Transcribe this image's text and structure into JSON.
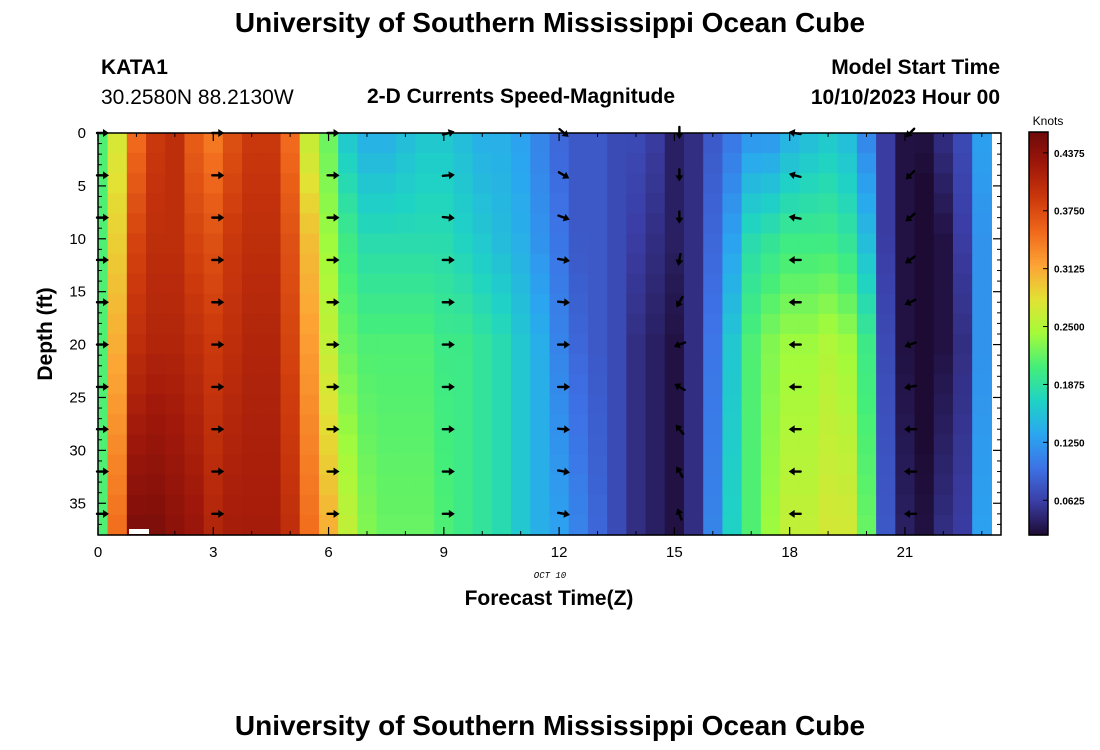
{
  "header": {
    "title": "University of Southern Mississippi Ocean Cube",
    "station": "KATA1",
    "coords": "30.2580N  88.2130W",
    "subtitle": "2-D Currents Speed-Magnitude",
    "start_label": "Model Start Time",
    "start_value": "10/10/2023 Hour 00",
    "footer_title": "University of Southern Mississippi Ocean Cube"
  },
  "chart_data": {
    "type": "heatmap",
    "title": "2-D Currents Speed-Magnitude",
    "xlabel": "Forecast Time(Z)",
    "ylabel": "Depth (ft)",
    "date_label": "OCT 10",
    "xlim": [
      0,
      23.5
    ],
    "ylim": [
      0,
      38
    ],
    "y_inverted": true,
    "x_ticks": [
      0,
      3,
      6,
      9,
      12,
      15,
      18,
      21
    ],
    "y_ticks": [
      0,
      5,
      10,
      15,
      20,
      25,
      30,
      35
    ],
    "colorbar": {
      "label": "Knots",
      "min": 0.025,
      "max": 0.46,
      "ticks": [
        "0.0625",
        "0.1250",
        "0.1875",
        "0.2500",
        "0.3125",
        "0.3750",
        "0.4375"
      ],
      "colors": [
        "#1d0b33",
        "#3b3ea6",
        "#3d72e6",
        "#2aa7f0",
        "#1fd3c4",
        "#44ee7a",
        "#a4fb3a",
        "#e2e234",
        "#fca535",
        "#f16a1c",
        "#cd3a0c",
        "#a0180a",
        "#6e0a0a"
      ]
    },
    "times": [
      0,
      0.5,
      1,
      1.5,
      2,
      2.5,
      3,
      3.5,
      4,
      4.5,
      5,
      5.5,
      6,
      6.5,
      7,
      7.5,
      8,
      8.5,
      9,
      9.5,
      10,
      10.5,
      11,
      11.5,
      12,
      12.5,
      13,
      13.5,
      14,
      14.5,
      15,
      15.5,
      16,
      16.5,
      17,
      17.5,
      18,
      18.5,
      19,
      19.5,
      20,
      20.5,
      21,
      21.5,
      22,
      22.5,
      23
    ],
    "speed_profile": {
      "depths": [
        0,
        10,
        20,
        38
      ],
      "rows": [
        [
          0.21,
          0.21,
          0.21,
          0.21
        ],
        [
          0.27,
          0.29,
          0.31,
          0.35
        ],
        [
          0.35,
          0.38,
          0.4,
          0.45
        ],
        [
          0.39,
          0.4,
          0.41,
          0.45
        ],
        [
          0.4,
          0.4,
          0.41,
          0.44
        ],
        [
          0.36,
          0.38,
          0.4,
          0.43
        ],
        [
          0.34,
          0.37,
          0.39,
          0.41
        ],
        [
          0.37,
          0.39,
          0.4,
          0.42
        ],
        [
          0.39,
          0.4,
          0.41,
          0.42
        ],
        [
          0.39,
          0.4,
          0.41,
          0.42
        ],
        [
          0.35,
          0.37,
          0.38,
          0.4
        ],
        [
          0.26,
          0.3,
          0.32,
          0.35
        ],
        [
          0.22,
          0.24,
          0.26,
          0.31
        ],
        [
          0.16,
          0.2,
          0.22,
          0.26
        ],
        [
          0.14,
          0.18,
          0.21,
          0.23
        ],
        [
          0.14,
          0.18,
          0.21,
          0.22
        ],
        [
          0.15,
          0.18,
          0.21,
          0.22
        ],
        [
          0.16,
          0.18,
          0.21,
          0.22
        ],
        [
          0.16,
          0.18,
          0.2,
          0.21
        ],
        [
          0.15,
          0.17,
          0.2,
          0.2
        ],
        [
          0.14,
          0.16,
          0.19,
          0.19
        ],
        [
          0.14,
          0.15,
          0.18,
          0.18
        ],
        [
          0.13,
          0.14,
          0.16,
          0.16
        ],
        [
          0.11,
          0.12,
          0.14,
          0.14
        ],
        [
          0.09,
          0.1,
          0.11,
          0.13
        ],
        [
          0.08,
          0.08,
          0.09,
          0.11
        ],
        [
          0.08,
          0.08,
          0.08,
          0.09
        ],
        [
          0.07,
          0.07,
          0.07,
          0.07
        ],
        [
          0.07,
          0.06,
          0.05,
          0.05
        ],
        [
          0.06,
          0.05,
          0.04,
          0.04
        ],
        [
          0.04,
          0.04,
          0.03,
          0.03
        ],
        [
          0.05,
          0.05,
          0.05,
          0.05
        ],
        [
          0.08,
          0.09,
          0.1,
          0.11
        ],
        [
          0.1,
          0.13,
          0.16,
          0.17
        ],
        [
          0.12,
          0.18,
          0.21,
          0.21
        ],
        [
          0.12,
          0.19,
          0.23,
          0.24
        ],
        [
          0.14,
          0.2,
          0.24,
          0.26
        ],
        [
          0.15,
          0.2,
          0.24,
          0.26
        ],
        [
          0.16,
          0.2,
          0.25,
          0.27
        ],
        [
          0.15,
          0.19,
          0.24,
          0.27
        ],
        [
          0.11,
          0.15,
          0.2,
          0.22
        ],
        [
          0.06,
          0.06,
          0.07,
          0.08
        ],
        [
          0.03,
          0.03,
          0.03,
          0.04
        ],
        [
          0.03,
          0.02,
          0.02,
          0.03
        ],
        [
          0.05,
          0.03,
          0.03,
          0.05
        ],
        [
          0.07,
          0.06,
          0.05,
          0.06
        ],
        [
          0.13,
          0.12,
          0.12,
          0.13
        ]
      ]
    },
    "vector_times": [
      0,
      3,
      6,
      9,
      12,
      15,
      18,
      21
    ],
    "vector_depths": [
      0,
      4,
      8,
      12,
      16,
      20,
      24,
      28,
      32,
      36
    ],
    "vector_directions_deg": [
      [
        90,
        90,
        90,
        90,
        90,
        90,
        90,
        90,
        90,
        90
      ],
      [
        90,
        90,
        90,
        90,
        90,
        90,
        90,
        90,
        90,
        90
      ],
      [
        90,
        90,
        90,
        90,
        90,
        90,
        90,
        90,
        90,
        90
      ],
      [
        75,
        85,
        95,
        90,
        90,
        90,
        90,
        90,
        90,
        90
      ],
      [
        130,
        120,
        110,
        100,
        95,
        90,
        90,
        95,
        100,
        100
      ],
      [
        180,
        180,
        180,
        190,
        210,
        250,
        300,
        320,
        330,
        340
      ],
      [
        280,
        285,
        280,
        270,
        270,
        270,
        270,
        270,
        270,
        270
      ],
      [
        225,
        225,
        230,
        235,
        245,
        250,
        260,
        270,
        270,
        270
      ]
    ]
  }
}
